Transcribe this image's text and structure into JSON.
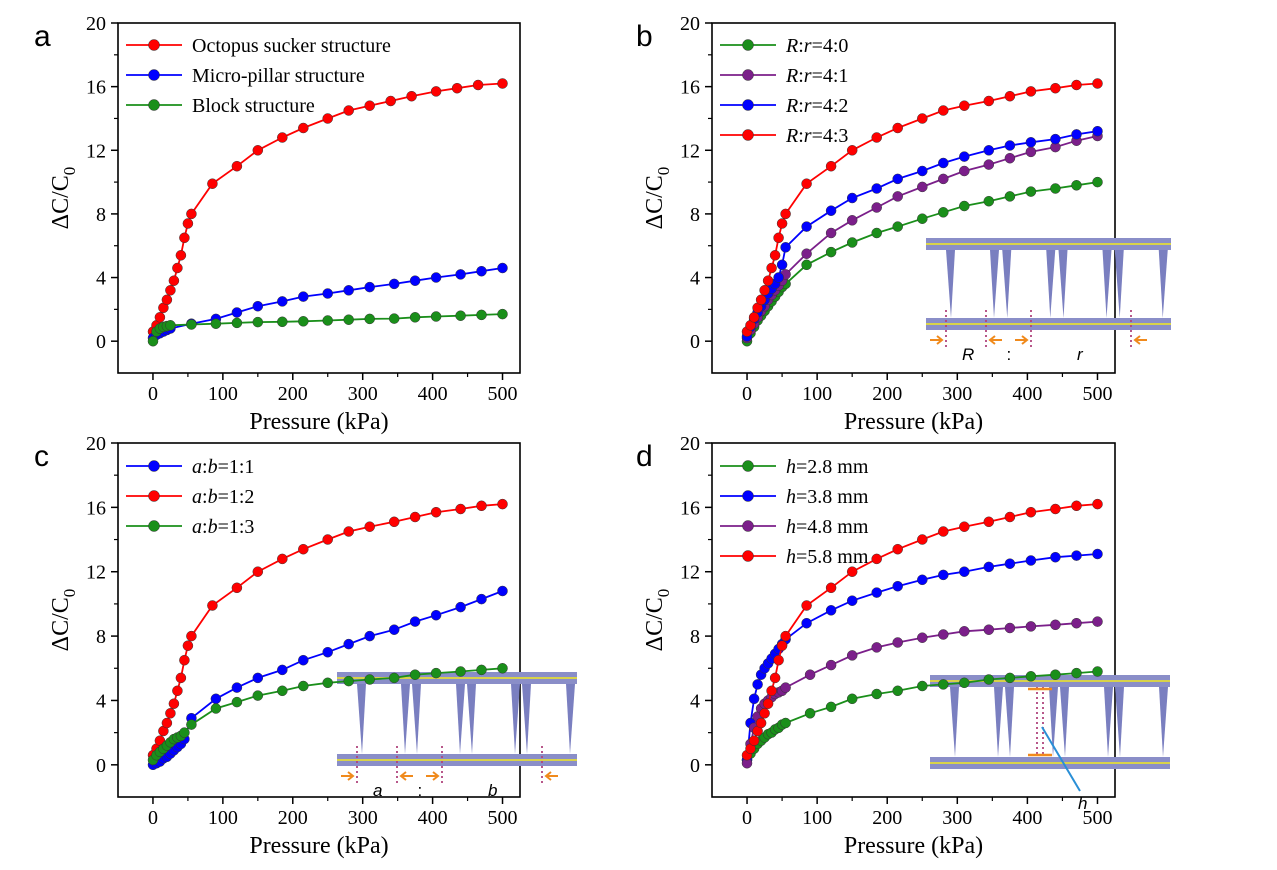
{
  "chart_data": [
    {
      "panel": "a",
      "type": "line",
      "xlabel": "Pressure (kPa)",
      "ylabel": "ΔC/C0",
      "xlim": [
        -50,
        525
      ],
      "ylim": [
        -2,
        20
      ],
      "xticks": [
        0,
        100,
        200,
        300,
        400,
        500
      ],
      "yticks": [
        0,
        4,
        8,
        12,
        16,
        20
      ],
      "legend_position": "top-left",
      "series": [
        {
          "name": "Octopus sucker structure",
          "color": "#ff0000",
          "x": [
            0,
            5,
            10,
            15,
            20,
            25,
            30,
            35,
            40,
            45,
            50,
            55,
            85,
            120,
            150,
            185,
            215,
            250,
            280,
            310,
            340,
            370,
            405,
            435,
            465,
            500
          ],
          "y": [
            0.6,
            1.0,
            1.5,
            2.1,
            2.6,
            3.2,
            3.8,
            4.6,
            5.4,
            6.5,
            7.4,
            8.0,
            9.9,
            11.0,
            12.0,
            12.8,
            13.4,
            14.0,
            14.5,
            14.8,
            15.1,
            15.4,
            15.7,
            15.9,
            16.1,
            16.2
          ]
        },
        {
          "name": "Micro-pillar structure",
          "color": "#0000ff",
          "x": [
            0,
            5,
            10,
            15,
            20,
            25,
            55,
            90,
            120,
            150,
            185,
            215,
            250,
            280,
            310,
            345,
            375,
            405,
            440,
            470,
            500
          ],
          "y": [
            0.2,
            0.4,
            0.5,
            0.6,
            0.7,
            0.8,
            1.1,
            1.4,
            1.8,
            2.2,
            2.5,
            2.8,
            3.0,
            3.2,
            3.4,
            3.6,
            3.8,
            4.0,
            4.2,
            4.4,
            4.6
          ]
        },
        {
          "name": "Block structure",
          "color": "#1a8f1a",
          "x": [
            0,
            5,
            10,
            15,
            20,
            25,
            55,
            90,
            120,
            150,
            185,
            215,
            250,
            280,
            310,
            345,
            375,
            405,
            440,
            470,
            500
          ],
          "y": [
            0,
            0.6,
            0.8,
            0.9,
            0.95,
            1.0,
            1.05,
            1.1,
            1.15,
            1.2,
            1.22,
            1.25,
            1.3,
            1.35,
            1.4,
            1.42,
            1.5,
            1.55,
            1.6,
            1.65,
            1.7
          ]
        }
      ]
    },
    {
      "panel": "b",
      "type": "line",
      "xlabel": "Pressure (kPa)",
      "ylabel": "ΔC/C0",
      "xlim": [
        -50,
        525
      ],
      "ylim": [
        -2,
        20
      ],
      "xticks": [
        0,
        100,
        200,
        300,
        400,
        500
      ],
      "yticks": [
        0,
        4,
        8,
        12,
        16,
        20
      ],
      "legend_position": "top-left",
      "series": [
        {
          "name": "R:r=4:0",
          "color": "#1a8f1a",
          "x": [
            0,
            5,
            10,
            15,
            20,
            25,
            30,
            35,
            40,
            45,
            50,
            55,
            85,
            120,
            150,
            185,
            215,
            250,
            280,
            310,
            345,
            375,
            405,
            440,
            470,
            500
          ],
          "y": [
            0,
            0.5,
            0.9,
            1.3,
            1.6,
            1.9,
            2.2,
            2.5,
            2.8,
            3.1,
            3.4,
            3.6,
            4.8,
            5.6,
            6.2,
            6.8,
            7.2,
            7.7,
            8.1,
            8.5,
            8.8,
            9.1,
            9.4,
            9.6,
            9.8,
            10.0
          ]
        },
        {
          "name": "R:r=4:1",
          "color": "#7b1f8a",
          "x": [
            0,
            5,
            10,
            15,
            20,
            25,
            30,
            35,
            40,
            45,
            50,
            55,
            85,
            120,
            150,
            185,
            215,
            250,
            280,
            310,
            345,
            375,
            405,
            440,
            470,
            500
          ],
          "y": [
            0.2,
            0.7,
            1.1,
            1.5,
            1.9,
            2.2,
            2.6,
            2.9,
            3.2,
            3.5,
            3.8,
            4.2,
            5.5,
            6.8,
            7.6,
            8.4,
            9.1,
            9.7,
            10.2,
            10.7,
            11.1,
            11.5,
            11.9,
            12.2,
            12.6,
            12.9
          ]
        },
        {
          "name": "R:r=4:2",
          "color": "#0000ff",
          "x": [
            0,
            5,
            10,
            15,
            20,
            25,
            30,
            35,
            40,
            45,
            50,
            55,
            85,
            120,
            150,
            185,
            215,
            250,
            280,
            310,
            345,
            375,
            405,
            440,
            470,
            500
          ],
          "y": [
            0.3,
            0.9,
            1.4,
            1.8,
            2.2,
            2.6,
            3.0,
            3.3,
            3.6,
            4.0,
            4.8,
            5.9,
            7.2,
            8.2,
            9.0,
            9.6,
            10.2,
            10.7,
            11.2,
            11.6,
            12.0,
            12.3,
            12.5,
            12.7,
            13.0,
            13.2
          ]
        },
        {
          "name": "R:r=4:3",
          "color": "#ff0000",
          "x": [
            0,
            5,
            10,
            15,
            20,
            25,
            30,
            35,
            40,
            45,
            50,
            55,
            85,
            120,
            150,
            185,
            215,
            250,
            280,
            310,
            345,
            375,
            405,
            440,
            470,
            500
          ],
          "y": [
            0.6,
            1.0,
            1.5,
            2.1,
            2.6,
            3.2,
            3.8,
            4.6,
            5.4,
            6.5,
            7.4,
            8.0,
            9.9,
            11.0,
            12.0,
            12.8,
            13.4,
            14.0,
            14.5,
            14.8,
            15.1,
            15.4,
            15.7,
            15.9,
            16.1,
            16.2
          ]
        }
      ],
      "inset_labels": {
        "left": "R",
        "sep": ":",
        "right": "r"
      }
    },
    {
      "panel": "c",
      "type": "line",
      "xlabel": "Pressure (kPa)",
      "ylabel": "ΔC/C0",
      "xlim": [
        -50,
        525
      ],
      "ylim": [
        -2,
        20
      ],
      "xticks": [
        0,
        100,
        200,
        300,
        400,
        500
      ],
      "yticks": [
        0,
        4,
        8,
        12,
        16,
        20
      ],
      "legend_position": "top-left",
      "series": [
        {
          "name": "a:b=1:1",
          "color": "#0000ff",
          "x": [
            0,
            5,
            10,
            15,
            20,
            25,
            30,
            35,
            40,
            45,
            55,
            90,
            120,
            150,
            185,
            215,
            250,
            280,
            310,
            345,
            375,
            405,
            440,
            470,
            500
          ],
          "y": [
            0,
            0.1,
            0.2,
            0.4,
            0.5,
            0.7,
            0.9,
            1.1,
            1.3,
            1.6,
            2.9,
            4.1,
            4.8,
            5.4,
            5.9,
            6.5,
            7.0,
            7.5,
            8.0,
            8.4,
            8.9,
            9.3,
            9.8,
            10.3,
            10.8
          ]
        },
        {
          "name": "a:b=1:2",
          "color": "#ff0000",
          "x": [
            0,
            5,
            10,
            15,
            20,
            25,
            30,
            35,
            40,
            45,
            50,
            55,
            85,
            120,
            150,
            185,
            215,
            250,
            280,
            310,
            345,
            375,
            405,
            440,
            470,
            500
          ],
          "y": [
            0.6,
            1.0,
            1.5,
            2.1,
            2.6,
            3.2,
            3.8,
            4.6,
            5.4,
            6.5,
            7.4,
            8.0,
            9.9,
            11.0,
            12.0,
            12.8,
            13.4,
            14.0,
            14.5,
            14.8,
            15.1,
            15.4,
            15.7,
            15.9,
            16.1,
            16.2
          ]
        },
        {
          "name": "a:b=1:3",
          "color": "#1a8f1a",
          "x": [
            0,
            5,
            10,
            15,
            20,
            25,
            30,
            35,
            40,
            45,
            55,
            90,
            120,
            150,
            185,
            215,
            250,
            280,
            310,
            345,
            375,
            405,
            440,
            470,
            500
          ],
          "y": [
            0.3,
            0.6,
            0.8,
            1.0,
            1.2,
            1.4,
            1.6,
            1.7,
            1.8,
            2.0,
            2.5,
            3.5,
            3.9,
            4.3,
            4.6,
            4.9,
            5.1,
            5.2,
            5.3,
            5.4,
            5.6,
            5.7,
            5.8,
            5.9,
            6.0
          ]
        }
      ],
      "inset_labels": {
        "left": "a",
        "sep": ":",
        "right": "b"
      }
    },
    {
      "panel": "d",
      "type": "line",
      "xlabel": "Pressure (kPa)",
      "ylabel": "ΔC/C0",
      "xlim": [
        -50,
        525
      ],
      "ylim": [
        -2,
        20
      ],
      "xticks": [
        0,
        100,
        200,
        300,
        400,
        500
      ],
      "yticks": [
        0,
        4,
        8,
        12,
        16,
        20
      ],
      "legend_position": "top-left",
      "series": [
        {
          "name": "h=2.8 mm",
          "color": "#1a8f1a",
          "x": [
            0,
            5,
            10,
            15,
            20,
            25,
            30,
            35,
            40,
            45,
            50,
            55,
            90,
            120,
            150,
            185,
            215,
            250,
            280,
            310,
            345,
            375,
            405,
            440,
            470,
            500
          ],
          "y": [
            0.3,
            0.7,
            1.0,
            1.3,
            1.5,
            1.7,
            1.9,
            2.0,
            2.2,
            2.3,
            2.5,
            2.6,
            3.2,
            3.6,
            4.1,
            4.4,
            4.6,
            4.9,
            5.0,
            5.1,
            5.3,
            5.4,
            5.5,
            5.6,
            5.7,
            5.8
          ]
        },
        {
          "name": "h=3.8 mm",
          "color": "#0000ff",
          "x": [
            0,
            5,
            10,
            15,
            20,
            25,
            30,
            35,
            40,
            45,
            50,
            55,
            85,
            120,
            150,
            185,
            215,
            250,
            280,
            310,
            345,
            375,
            405,
            440,
            470,
            500
          ],
          "y": [
            0.3,
            2.6,
            4.1,
            5.0,
            5.6,
            6.0,
            6.3,
            6.6,
            6.9,
            7.2,
            7.5,
            7.8,
            8.8,
            9.6,
            10.2,
            10.7,
            11.1,
            11.5,
            11.8,
            12.0,
            12.3,
            12.5,
            12.7,
            12.9,
            13.0,
            13.1
          ]
        },
        {
          "name": "h=4.8 mm",
          "color": "#7b1f8a",
          "x": [
            0,
            5,
            10,
            15,
            20,
            25,
            30,
            35,
            40,
            45,
            50,
            55,
            90,
            120,
            150,
            185,
            215,
            250,
            280,
            310,
            345,
            375,
            405,
            440,
            470,
            500
          ],
          "y": [
            0.1,
            1.3,
            2.3,
            3.0,
            3.5,
            3.8,
            4.0,
            4.2,
            4.4,
            4.5,
            4.6,
            4.8,
            5.6,
            6.2,
            6.8,
            7.3,
            7.6,
            7.9,
            8.1,
            8.3,
            8.4,
            8.5,
            8.6,
            8.7,
            8.8,
            8.9
          ]
        },
        {
          "name": "h=5.8 mm",
          "color": "#ff0000",
          "x": [
            0,
            5,
            10,
            15,
            20,
            25,
            30,
            35,
            40,
            45,
            50,
            55,
            85,
            120,
            150,
            185,
            215,
            250,
            280,
            310,
            345,
            375,
            405,
            440,
            470,
            500
          ],
          "y": [
            0.6,
            1.0,
            1.5,
            2.1,
            2.6,
            3.2,
            3.8,
            4.6,
            5.4,
            6.5,
            7.4,
            8.0,
            9.9,
            11.0,
            12.0,
            12.8,
            13.4,
            14.0,
            14.5,
            14.8,
            15.1,
            15.4,
            15.7,
            15.9,
            16.1,
            16.2
          ]
        }
      ],
      "inset_labels": {
        "dim": "h"
      }
    }
  ],
  "panel_letters": [
    "a",
    "b",
    "c",
    "d"
  ]
}
